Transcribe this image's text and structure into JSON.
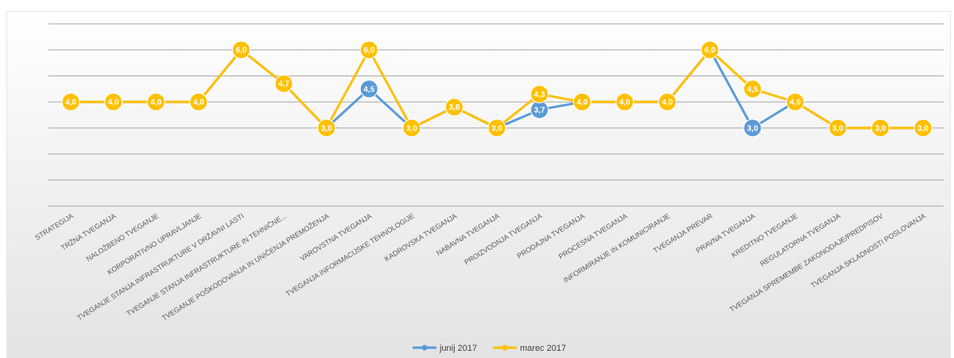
{
  "chart_data": {
    "type": "line",
    "title": "",
    "xlabel": "",
    "ylabel": "",
    "ylim": [
      0,
      7
    ],
    "grid": true,
    "legend_position": "bottom",
    "categories": [
      "STRATEGIJA",
      "TRŽNA TVEGANJA",
      "NALOŽBENO TVEGANJE",
      "KORPORATIVNO UPRAVLJANJE",
      "TVEGANJE STANJA INFRASTRUKTURE V DRŽAVNI LASTI",
      "TVEGANJE STANJA INFRASTRUKTURE IN TEHNIČNE...",
      "TVEGANJE POŠKODOVANJA IN UNIČENJA PREMOŽENJA",
      "VAROVSTNA TVEGANJA",
      "TVEGANJA INFORMACIJSKE TEHNOLOGIJE",
      "KADROVSKA TVEGANJA",
      "NABAVNA TVEGANJA",
      "PROIZVODNJA TVEGANJA",
      "PRODAJNA TVEGANJA",
      "PROCESNA TVEGANJA",
      "INFORMIRANJE IN KOMUNICIRANJE",
      "TVEGANJA PREVAR",
      "PRAVNA TVEGANJA",
      "KREDITNO TVEGANJE",
      "REGULATORNA TVEGANJA",
      "TVEGANJA SPREMEMBE ZAKONODAJE/PREDPISOV",
      "TVEGANJA SKLADNOSTI POSLOVANJA"
    ],
    "series": [
      {
        "name": "junij 2017",
        "color": "#5b9bd5",
        "values": [
          4.0,
          4.0,
          4.0,
          4.0,
          6.0,
          4.7,
          3.0,
          4.5,
          3.0,
          3.8,
          3.0,
          3.7,
          4.0,
          4.0,
          4.0,
          6.0,
          3.0,
          4.0,
          3.0,
          3.0,
          3.0
        ],
        "labels": [
          "4,0",
          "4,0",
          "4,0",
          "4,0",
          "6,0",
          "4,7",
          "3,0",
          "4,5",
          "3,0",
          "3,8",
          "3,0",
          "3,7",
          "4,0",
          "4,0",
          "4,0",
          "6,0",
          "3,0",
          "4,0",
          "3,0",
          "3,0",
          "3,0"
        ]
      },
      {
        "name": "marec 2017",
        "color": "#ffc000",
        "values": [
          4.0,
          4.0,
          4.0,
          4.0,
          6.0,
          4.7,
          3.0,
          6.0,
          3.0,
          3.8,
          3.0,
          4.3,
          4.0,
          4.0,
          4.0,
          6.0,
          4.5,
          4.0,
          3.0,
          3.0,
          3.0
        ],
        "labels": [
          "4,0",
          "4,0",
          "4,0",
          "4,0",
          "6,0",
          "4,7",
          "3,0",
          "6,0",
          "3,0",
          "3,8",
          "3,0",
          "4,3",
          "4,0",
          "4,0",
          "4,0",
          "6,0",
          "4,5",
          "4,0",
          "3,0",
          "3,0",
          "3,0"
        ]
      }
    ]
  }
}
